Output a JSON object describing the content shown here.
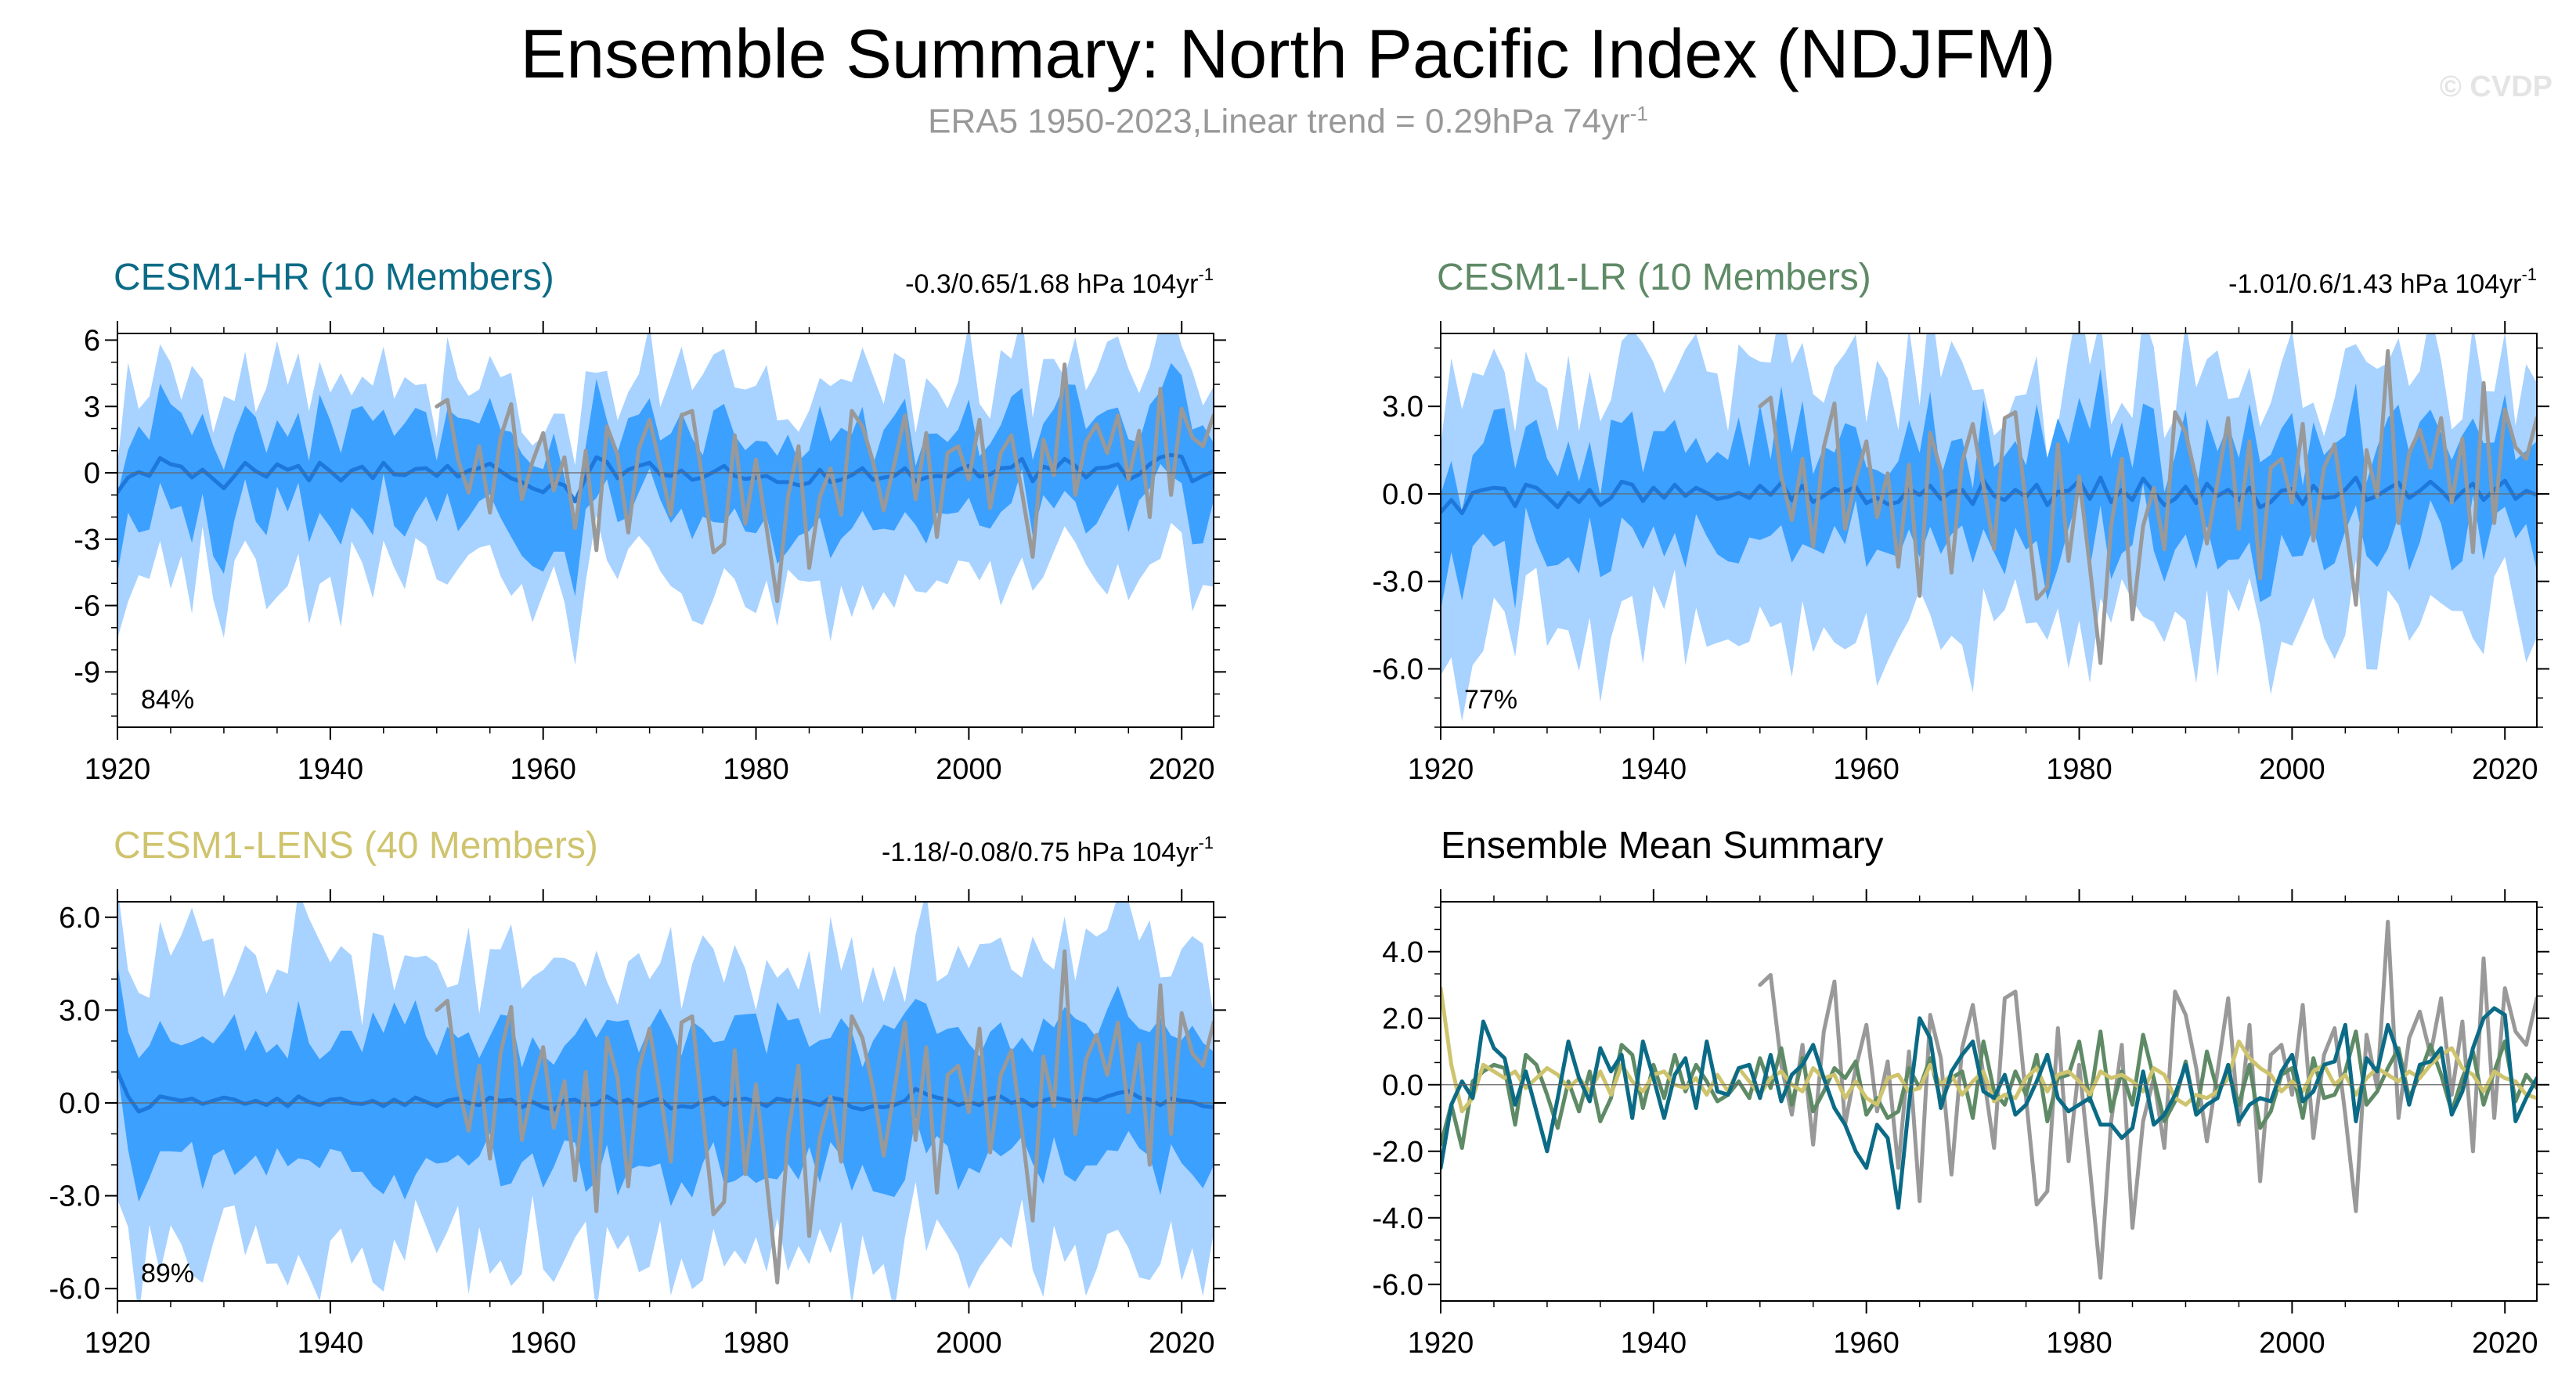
{
  "header": {
    "title": "Ensemble Summary: North Pacific Index (NDJFM)",
    "subtitle_text": "ERA5 1950-2023,Linear trend = 0.29hPa 74yr",
    "subtitle_sup": "-1",
    "credit": "© CVDP"
  },
  "colors": {
    "outer_band": "#a8d2ff",
    "inner_band": "#3ca0ff",
    "mean_line": "#1e78dc",
    "obs": "#999999",
    "hr": "#0b6b86",
    "lr": "#5e8a66",
    "lens": "#cfc46e"
  },
  "chart_data": [
    {
      "type": "line",
      "id": "hr",
      "title": "CESM1-HR (10 Members)",
      "title_color": "#0b6b86",
      "stat_text": "-0.3/0.65/1.68 hPa 104yr",
      "stat_sup": "-1",
      "percent": "84%",
      "xlim": [
        1920,
        2023
      ],
      "ylim": [
        -11.5,
        6.3
      ],
      "yticks": [
        6,
        3,
        0,
        -3,
        -6,
        -9
      ],
      "ytick_labels": [
        "6",
        "3",
        "0",
        "-3",
        "-6",
        "-9"
      ],
      "xticks": [
        1920,
        1940,
        1960,
        1980,
        2000,
        2020
      ],
      "xtick_labels": [
        "1920",
        "1940",
        "1960",
        "1980",
        "2000",
        "2020"
      ],
      "noise": 1.0,
      "outer_width": 4.2,
      "inner_width": 2.0,
      "seed": 11
    },
    {
      "type": "line",
      "id": "lr",
      "title": "CESM1-LR (10 Members)",
      "title_color": "#5e8a66",
      "stat_text": "-1.01/0.6/1.43 hPa 104yr",
      "stat_sup": "-1",
      "percent": "77%",
      "xlim": [
        1920,
        2023
      ],
      "ylim": [
        -8,
        5.5
      ],
      "yticks": [
        3,
        0,
        -3,
        -6
      ],
      "ytick_labels": [
        "3.0",
        "0.0",
        "-3.0",
        "-6.0"
      ],
      "xticks": [
        1920,
        1940,
        1960,
        1980,
        2000,
        2020
      ],
      "xtick_labels": [
        "1920",
        "1940",
        "1960",
        "1980",
        "2000",
        "2020"
      ],
      "noise": 0.8,
      "outer_width": 4.0,
      "inner_width": 1.9,
      "seed": 23
    },
    {
      "type": "line",
      "id": "lens",
      "title": "CESM1-LENS (40 Members)",
      "title_color": "#cfc46e",
      "stat_text": "-1.18/-0.08/0.75 hPa 104yr",
      "stat_sup": "-1",
      "percent": "89%",
      "xlim": [
        1920,
        2023
      ],
      "ylim": [
        -6.4,
        6.5
      ],
      "yticks": [
        6,
        3,
        0,
        -3,
        -6
      ],
      "ytick_labels": [
        "6.0",
        "3.0",
        "0.0",
        "-3.0",
        "-6.0"
      ],
      "xticks": [
        1920,
        1940,
        1960,
        1980,
        2000,
        2020
      ],
      "xtick_labels": [
        "1920",
        "1940",
        "1960",
        "1980",
        "2000",
        "2020"
      ],
      "noise": 0.45,
      "outer_width": 4.4,
      "inner_width": 2.2,
      "seed": 37
    },
    {
      "type": "line",
      "id": "summary",
      "title": "Ensemble Mean Summary",
      "title_color": "#000000",
      "xlim": [
        1920,
        2023
      ],
      "ylim": [
        -6.5,
        5.5
      ],
      "yticks": [
        4,
        2,
        0,
        -2,
        -4,
        -6
      ],
      "ytick_labels": [
        "4.0",
        "2.0",
        "0.0",
        "-2.0",
        "-4.0",
        "-6.0"
      ],
      "xticks": [
        1920,
        1940,
        1960,
        1980,
        2000,
        2020
      ],
      "xtick_labels": [
        "1920",
        "1940",
        "1960",
        "1980",
        "2000",
        "2020"
      ],
      "series": [
        "CESM1-HR",
        "CESM1-LR",
        "CESM1-LENS",
        "ERA5"
      ]
    }
  ],
  "observations": {
    "name": "ERA5",
    "start_year": 1950,
    "values": [
      3.0,
      3.3,
      0.6,
      -0.9,
      1.2,
      -1.8,
      1.6,
      3.1,
      -1.2,
      0.5,
      1.8,
      -0.8,
      0.7,
      -2.5,
      1.0,
      -3.5,
      2.1,
      0.8,
      -2.7,
      1.1,
      2.4,
      0.3,
      -1.9,
      2.6,
      2.8,
      -0.4,
      -3.6,
      -3.2,
      1.7,
      -2.3,
      0.6,
      -2.5,
      -5.8,
      -1.1,
      1.2,
      -4.3,
      -1.1,
      0.2,
      -1.9,
      2.8,
      2.1,
      0.5,
      -1.7,
      0.4,
      2.6,
      -1.2,
      1.8,
      -2.9,
      0.9,
      1.2,
      -0.3,
      2.4,
      -1.6,
      0.9,
      1.7,
      -0.9,
      -3.8,
      1.5,
      -0.1,
      4.9,
      -1.0,
      1.4,
      2.2,
      0.9,
      2.6,
      -0.3,
      1.9,
      -2.0,
      3.8,
      -1.0,
      2.9,
      1.6,
      1.2,
      2.6
    ]
  },
  "ensemble_means": {
    "start_year": 1920,
    "hr": [
      -2.5,
      -0.6,
      0.1,
      -0.4,
      1.9,
      1.1,
      0.8,
      -0.6,
      0.4,
      -0.8,
      -2.0,
      -0.4,
      1.3,
      0.2,
      -0.5,
      1.1,
      0.4,
      0.9,
      -1.0,
      1.3,
      0.2,
      -1.0,
      0.3,
      0.8,
      -0.7,
      1.3,
      -0.2,
      -0.3,
      0.5,
      0.6,
      -0.4,
      0.9,
      -0.5,
      0.3,
      0.6,
      1.2,
      0.2,
      -0.7,
      -1.2,
      -2.0,
      -2.5,
      -1.2,
      -1.6,
      -3.7,
      -0.6,
      2.0,
      1.4,
      -0.7,
      0.4,
      0.9,
      1.3,
      -0.2,
      -0.4,
      0.3,
      -0.9,
      -0.6,
      0.1,
      0.9,
      -0.4,
      -0.8,
      -0.6,
      -0.4,
      -1.2,
      -1.2,
      -1.6,
      -1.3,
      0.4,
      -1.2,
      -0.9,
      -0.3,
      0.6,
      -0.9,
      -0.6,
      -0.4,
      0.6,
      -1.1,
      -0.6,
      -0.4,
      -0.5,
      0.4,
      0.9,
      -0.5,
      -0.2,
      0.6,
      0.7,
      1.8,
      -1.1,
      0.8,
      0.4,
      1.8,
      0.9,
      -0.6,
      0.6,
      0.7,
      1.1,
      -0.9,
      -0.2,
      1.1,
      2.0,
      2.3,
      2.1,
      -1.1,
      -0.4,
      0.2
    ],
    "lr": [
      -1.8,
      -0.6,
      -1.9,
      0.1,
      0.4,
      0.6,
      0.5,
      -1.2,
      0.9,
      0.6,
      -0.3,
      -1.3,
      0.1,
      -0.8,
      0.4,
      -1.1,
      -0.4,
      1.2,
      0.9,
      -0.7,
      0.6,
      -0.4,
      0.9,
      -0.2,
      0.6,
      0.1,
      -0.5,
      -0.3,
      0.1,
      -0.4,
      0.8,
      -0.1,
      1.1,
      -0.6,
      0.8,
      -0.8,
      -0.2,
      0.5,
      0.2,
      0.7,
      -0.9,
      -0.4,
      -1.0,
      -0.8,
      0.5,
      -0.1,
      0.8,
      -0.5,
      0.2,
      0.4,
      -1.0,
      1.3,
      -0.2,
      -0.6,
      0.4,
      -0.3,
      0.9,
      -1.1,
      0.2,
      0.3,
      1.3,
      -0.5,
      1.6,
      -0.8,
      0.4,
      -0.6,
      1.5,
      0.2,
      -1.1,
      -0.5,
      0.7,
      -0.9,
      1.0,
      -0.2,
      0.4,
      -0.6,
      0.6,
      -1.3,
      -0.8,
      0.3,
      0.5,
      -1.0,
      0.8,
      -0.4,
      -0.3,
      0.4,
      1.6,
      -0.6,
      -0.2,
      0.5,
      1.1,
      -0.4,
      0.3,
      1.2,
      0.3,
      -0.8,
      0.2,
      1.0,
      -0.6,
      0.4,
      1.3,
      -0.5,
      0.3,
      -0.1
    ],
    "lens": [
      2.9,
      0.6,
      -0.8,
      -0.4,
      0.6,
      0.4,
      0.2,
      0.4,
      -0.1,
      0.2,
      0.5,
      0.3,
      -0.1,
      0.2,
      -0.2,
      0.4,
      -0.3,
      0.6,
      0.1,
      -0.2,
      0.3,
      0.4,
      0.0,
      -0.1,
      0.2,
      -0.3,
      0.3,
      -0.2,
      0.5,
      0.1,
      -0.3,
      0.2,
      0.4,
      0.0,
      -0.2,
      0.5,
      0.2,
      0.3,
      -0.4,
      0.1,
      -0.4,
      -0.6,
      0.2,
      0.3,
      -0.2,
      -0.1,
      0.6,
      0.0,
      0.3,
      -0.3,
      0.1,
      0.4,
      -0.5,
      -0.3,
      -0.4,
      0.2,
      0.5,
      -0.2,
      0.3,
      0.4,
      0.1,
      -0.3,
      0.4,
      0.2,
      0.3,
      0.1,
      -0.2,
      0.5,
      0.3,
      -0.4,
      -0.6,
      -0.3,
      -0.4,
      -0.2,
      0.2,
      1.3,
      0.8,
      0.5,
      0.3,
      -0.2,
      0.1,
      -0.2,
      0.4,
      0.6,
      0.0,
      0.3,
      -0.3,
      0.2,
      0.5,
      0.3,
      0.1,
      0.4,
      0.2,
      0.6,
      0.9,
      1.1,
      0.5,
      0.3,
      -0.2,
      0.4,
      0.2,
      0.1,
      -0.3,
      -0.4
    ]
  }
}
